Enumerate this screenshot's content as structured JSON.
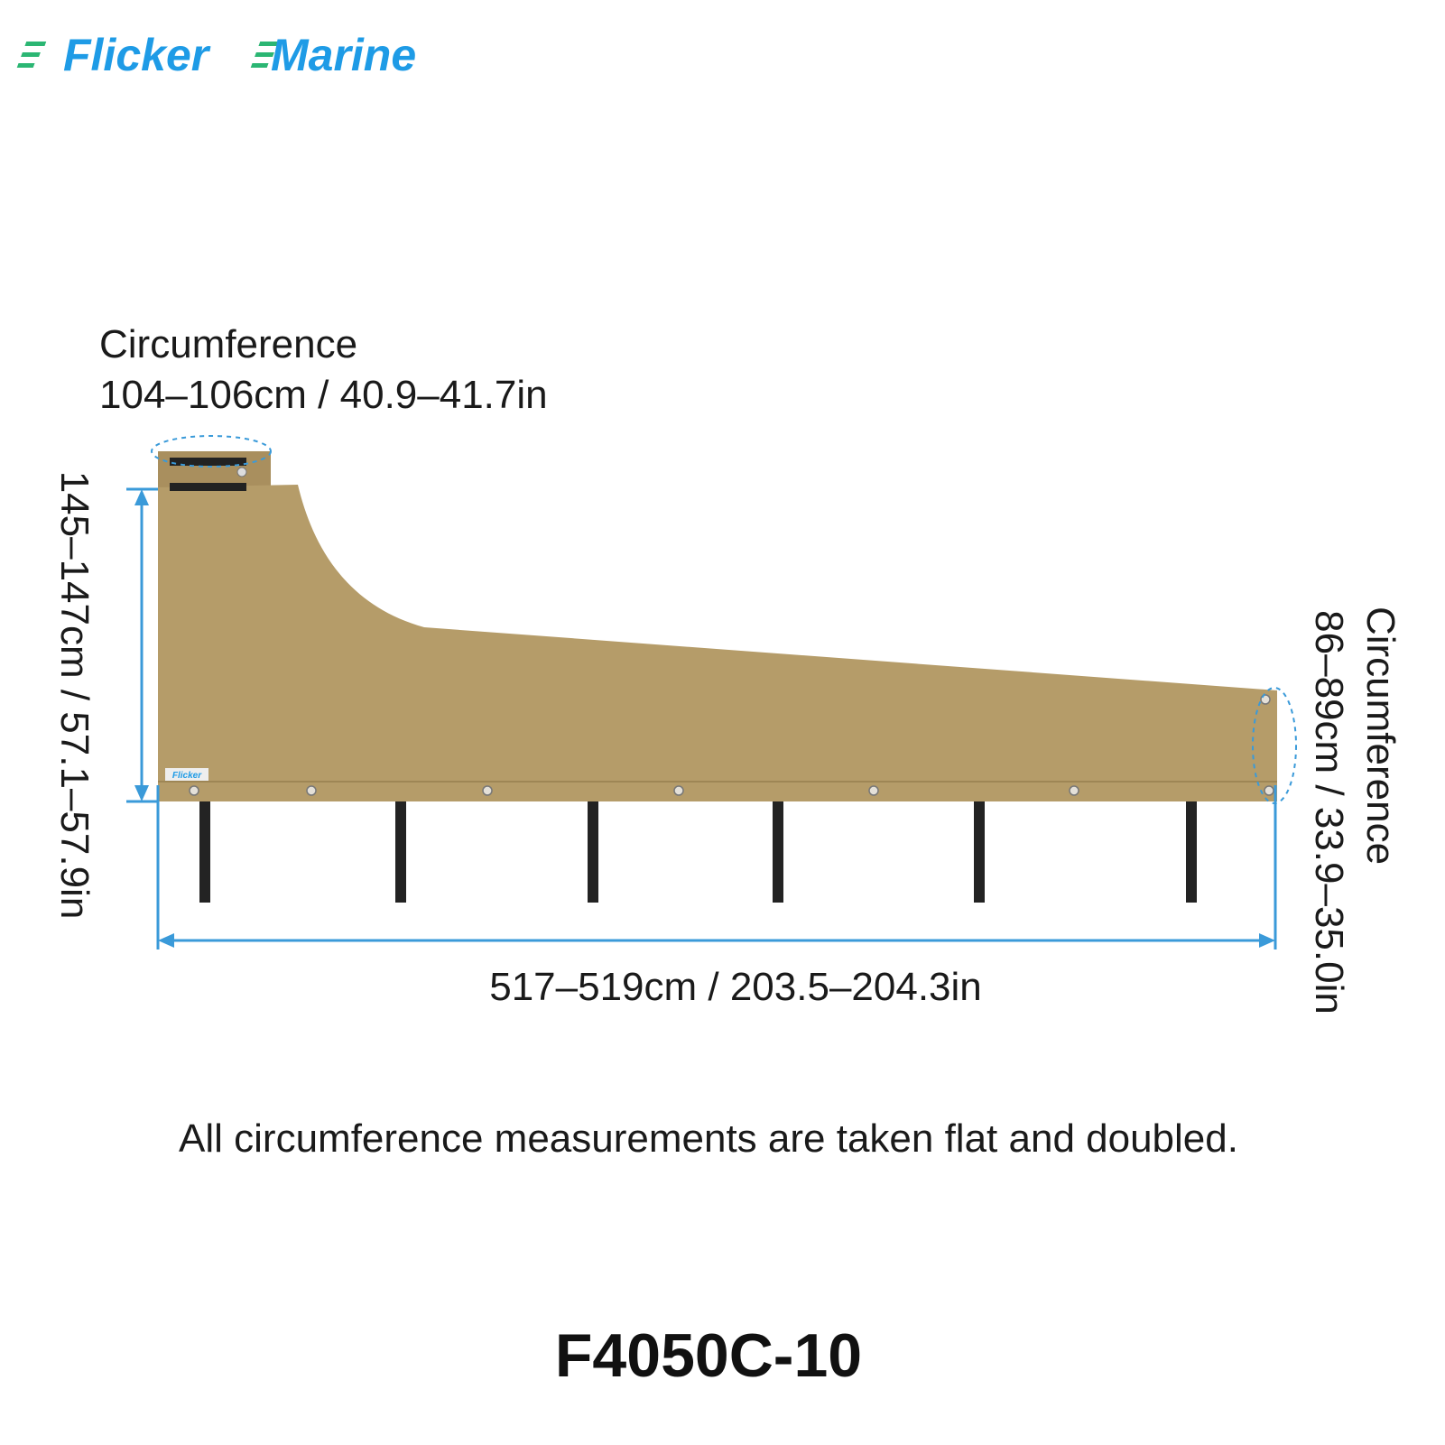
{
  "logo": {
    "brand": "Flicker",
    "suffix": "Marine"
  },
  "labels": {
    "top_circumference": {
      "title": "Circumference",
      "value": "104–106cm / 40.9–41.7in"
    },
    "right_circumference": {
      "title": "Circumference",
      "value": "86–89cm / 33.9–35.0in"
    },
    "height": "145–147cm / 57.1–57.9in",
    "length": "517–519cm / 203.5–204.3in"
  },
  "patch_label": "Flicker",
  "note": "All circumference measurements are taken flat and doubled.",
  "model": "F4050C-10"
}
